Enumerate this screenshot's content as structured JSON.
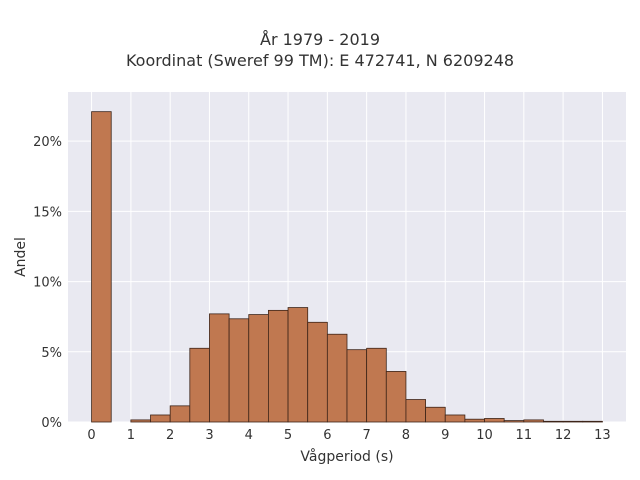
{
  "chart_data": {
    "type": "bar",
    "title": "År 1979 - 2019",
    "subtitle": "Koordinat (Sweref 99 TM): E 472741, N 6209248",
    "xlabel": "Vågperiod (s)",
    "ylabel": "Andel",
    "bin_width": 0.5,
    "x": [
      0,
      1,
      1.5,
      2,
      2.5,
      3,
      3.5,
      4,
      4.5,
      5,
      5.5,
      6,
      6.5,
      7,
      7.5,
      8,
      8.5,
      9,
      9.5,
      10,
      10.5,
      11,
      11.5,
      12,
      12.5
    ],
    "values": [
      22.1,
      0.15,
      0.5,
      1.15,
      5.25,
      7.7,
      7.35,
      7.65,
      7.95,
      8.15,
      7.1,
      6.25,
      5.15,
      5.25,
      3.6,
      1.6,
      1.05,
      0.5,
      0.2,
      0.25,
      0.1,
      0.15,
      0.05,
      0.05,
      0.05
    ],
    "xlim": [
      -0.6,
      13.6
    ],
    "ylim": [
      0,
      23.5
    ],
    "x_ticks": [
      0,
      1,
      2,
      3,
      4,
      5,
      6,
      7,
      8,
      9,
      10,
      11,
      12,
      13
    ],
    "x_tick_labels": [
      "0",
      "1",
      "2",
      "3",
      "4",
      "5",
      "6",
      "7",
      "8",
      "9",
      "10",
      "11",
      "12",
      "13"
    ],
    "y_ticks": [
      0,
      5,
      10,
      15,
      20
    ],
    "y_tick_labels": [
      "0%",
      "5%",
      "10%",
      "15%",
      "20%"
    ],
    "grid": true,
    "legend": "none",
    "colors": {
      "bar_fill": "#c07850",
      "bar_edge": "#3d2418",
      "plot_background": "#e9e9f1",
      "grid": "#ffffff",
      "text": "#333333"
    }
  }
}
